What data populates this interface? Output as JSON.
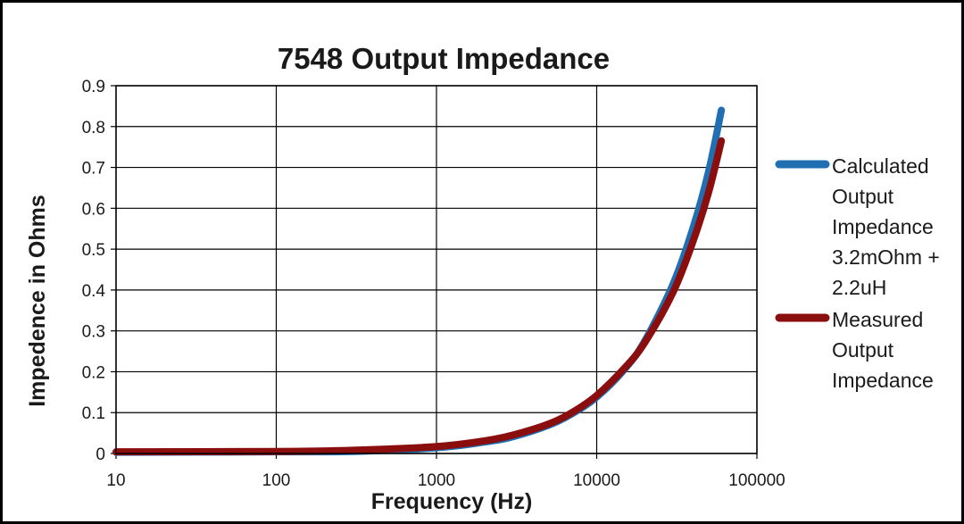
{
  "chart_data": {
    "type": "line",
    "title": "7548 Output Impedance",
    "xlabel": "Frequency (Hz)",
    "ylabel": "Impedence in Ohms",
    "x_scale": "log",
    "xlim": [
      10,
      100000
    ],
    "ylim": [
      0,
      0.9
    ],
    "x_ticks": [
      "10",
      "100",
      "1000",
      "10000",
      "100000"
    ],
    "y_ticks": [
      "0",
      "0.1",
      "0.2",
      "0.3",
      "0.4",
      "0.5",
      "0.6",
      "0.7",
      "0.8",
      "0.9"
    ],
    "grid": true,
    "legend_position": "right",
    "x": [
      10,
      100,
      300,
      1000,
      2000,
      3000,
      5000,
      7000,
      10000,
      15000,
      20000,
      30000,
      40000,
      50000,
      60000
    ],
    "series": [
      {
        "name": "Calculated Output Impedance 3.2mOhm + 2.2uH",
        "legend_lines": [
          "Calculated",
          "Output",
          "Impedance",
          "3.2mOhm +",
          "2.2uH"
        ],
        "color": "#1f6fb2",
        "values": [
          0.003,
          0.004,
          0.005,
          0.014,
          0.028,
          0.041,
          0.069,
          0.097,
          0.138,
          0.207,
          0.276,
          0.415,
          0.553,
          0.691,
          0.84
        ]
      },
      {
        "name": "Measured Output Impedance",
        "legend_lines": [
          "Measured",
          "Output",
          "Impedance"
        ],
        "color": "#8b0e0e",
        "values": [
          0.004,
          0.005,
          0.008,
          0.017,
          0.031,
          0.045,
          0.072,
          0.1,
          0.142,
          0.21,
          0.272,
          0.395,
          0.52,
          0.64,
          0.765
        ]
      }
    ]
  }
}
